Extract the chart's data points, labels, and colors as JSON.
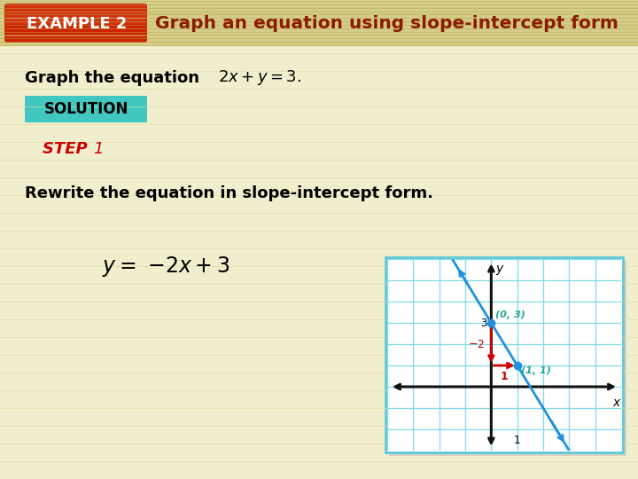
{
  "bg_color": "#f0eecc",
  "header_bg": "#d4cc88",
  "example_box_color": "#cc2200",
  "example_box_grad_top": "#dd4422",
  "example_box_text": "EXAMPLE 2",
  "header_title": "Graph an equation using slope-intercept form",
  "header_title_color": "#8b1a00",
  "solution_bg": "#40c8c0",
  "solution_text": "SOLUTION",
  "step_color": "#cc0000",
  "body_text": "Rewrite the equation in slope-intercept form.",
  "graph_bg": "#ffffff",
  "graph_border": "#60c8d8",
  "grid_color": "#80d8e8",
  "axis_color": "#111111",
  "line_color": "#2090e0",
  "arrow_color": "#cc0000",
  "point_color": "#2090e0",
  "label_color": "#20a890",
  "slope_label_color": "#cc0000",
  "point1": [
    0,
    3
  ],
  "point2": [
    1,
    1
  ],
  "slope": -2,
  "intercept": 3,
  "xlim": [
    -4,
    5
  ],
  "ylim": [
    -3,
    6
  ]
}
